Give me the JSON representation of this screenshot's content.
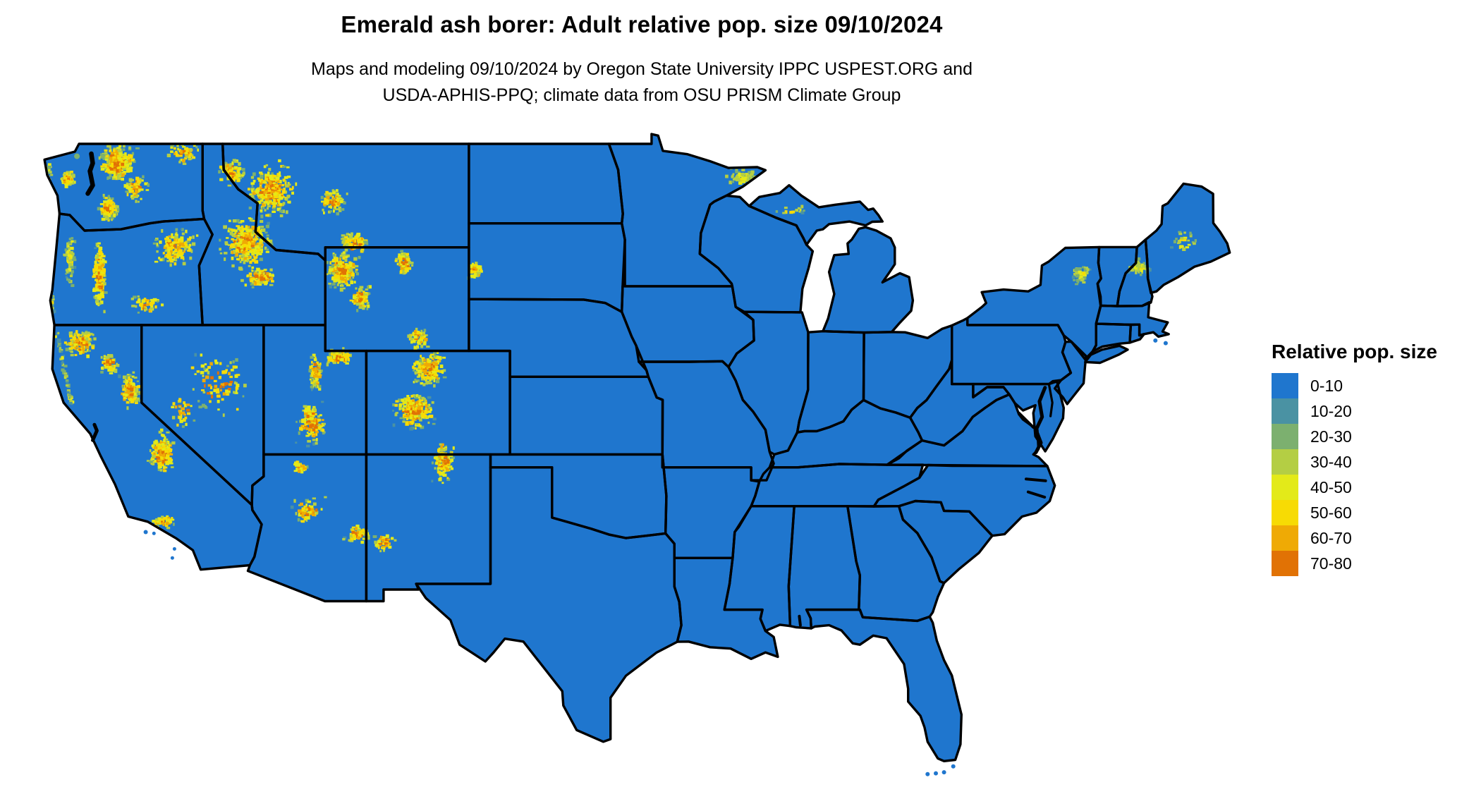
{
  "header": {
    "title": "Emerald ash borer: Adult relative pop. size 09/10/2024",
    "subtitle_line1": "Maps and modeling 09/10/2024 by Oregon State University IPPC USPEST.ORG and",
    "subtitle_line2": "USDA-APHIS-PPQ; climate data from OSU PRISM Climate Group"
  },
  "legend": {
    "title": "Relative pop. size",
    "items": [
      {
        "label": "0-10",
        "color": "#1F76CE"
      },
      {
        "label": "10-20",
        "color": "#4A92A3"
      },
      {
        "label": "20-30",
        "color": "#7CB06F"
      },
      {
        "label": "30-40",
        "color": "#B4CE44"
      },
      {
        "label": "40-50",
        "color": "#E3EA19"
      },
      {
        "label": "50-60",
        "color": "#F7DB04"
      },
      {
        "label": "60-70",
        "color": "#EFAA05"
      },
      {
        "label": "70-80",
        "color": "#E17205"
      }
    ]
  },
  "map": {
    "base_fill": "#1F76CE",
    "border_color": "#000000",
    "water_color": "#FFFFFF"
  }
}
